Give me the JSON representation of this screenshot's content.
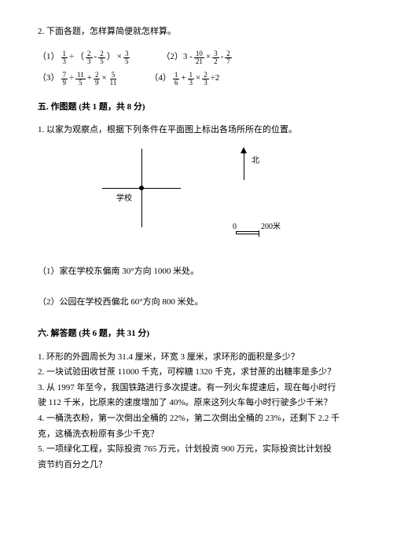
{
  "p2_intro": "2. 下面各题，怎样算简便就怎样算。",
  "expr1_lead": "（1）",
  "expr2_lead": "（2）3 -",
  "expr3_lead": "（3）",
  "expr4_lead": "（4）",
  "f": {
    "1_3": {
      "n": "1",
      "d": "3"
    },
    "2_3": {
      "n": "2",
      "d": "3"
    },
    "2_5": {
      "n": "2",
      "d": "5"
    },
    "3_5": {
      "n": "3",
      "d": "5"
    },
    "10_21": {
      "n": "10",
      "d": "21"
    },
    "3_2": {
      "n": "3",
      "d": "2"
    },
    "2_7": {
      "n": "2",
      "d": "7"
    },
    "7_9": {
      "n": "7",
      "d": "9"
    },
    "11_5": {
      "n": "11",
      "d": "5"
    },
    "2_9": {
      "n": "2",
      "d": "9"
    },
    "5_11": {
      "n": "5",
      "d": "11"
    },
    "1_6": {
      "n": "1",
      "d": "6"
    }
  },
  "op_div": "÷",
  "op_mul": "×",
  "op_plus": "+",
  "op_minus": "-",
  "op_lpar": "（",
  "op_rpar": "）",
  "op_div2": "÷2",
  "section5_title": "五. 作图题 (共 1 题，共 8 分)",
  "s5_q1": "1. 以家为观察点，根据下列条件在平面图上标出各场所所在的位置。",
  "label_school": "学校",
  "label_north": "北",
  "scale_zero": "0",
  "scale_200": "200米",
  "s5_sub1": "（1）家在学校东偏南 30°方向 1000 米处。",
  "s5_sub2": "（2）公园在学校西偏北 60°方向 800 米处。",
  "section6_title": "六. 解答题 (共 6 题，共 31 分)",
  "s6_q1": "1. 环形的外圆周长为 31.4 厘米，环宽 3 厘米，求环形的面积是多少？",
  "s6_q2": "2. 一块试验田收甘蔗 11000 千克，可榨糖 1320 千克，求甘蔗的出糖率是多少？",
  "s6_q3a": "3. 从 1997 年至今，我国铁路进行多次提速。有一列火车提速后，现在每小时行",
  "s6_q3b": "驶 112 千米，比原来的速度增加了 40%。原来这列火车每小时行驶多少千米？",
  "s6_q4a": "4. 一桶洗衣粉，第一次倒出全桶的 22%，第二次倒出全桶的 23%，还剩下 2.2 千",
  "s6_q4b": "克，这桶洗衣粉原有多少千克？",
  "s6_q5a": "5. 一项绿化工程，实际投资 765 万元，计划投资 900 万元，实际投资比计划投",
  "s6_q5b": "资节约百分之几？"
}
